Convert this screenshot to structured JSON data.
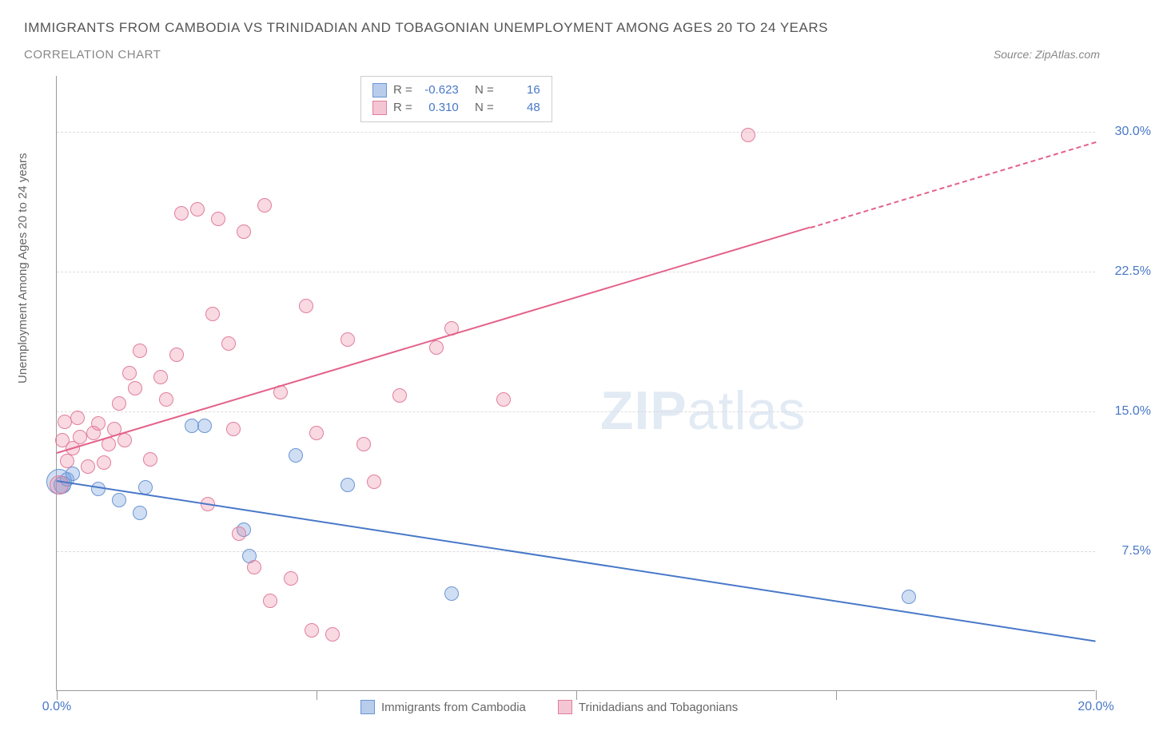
{
  "title": "IMMIGRANTS FROM CAMBODIA VS TRINIDADIAN AND TOBAGONIAN UNEMPLOYMENT AMONG AGES 20 TO 24 YEARS",
  "subtitle": "CORRELATION CHART",
  "source": "Source: ZipAtlas.com",
  "y_axis_label": "Unemployment Among Ages 20 to 24 years",
  "watermark_a": "ZIP",
  "watermark_b": "atlas",
  "chart": {
    "type": "scatter",
    "xlim": [
      0,
      20
    ],
    "ylim": [
      0,
      33
    ],
    "x_ticks": [
      0,
      5,
      10,
      15,
      20
    ],
    "x_tick_labels": [
      "0.0%",
      "",
      "",
      "",
      "20.0%"
    ],
    "y_ticks": [
      7.5,
      15.0,
      22.5,
      30.0
    ],
    "y_tick_labels": [
      "7.5%",
      "15.0%",
      "22.5%",
      "30.0%"
    ],
    "grid_color": "#dddddd",
    "axis_color": "#999999",
    "background_color": "#ffffff",
    "label_fontsize": 15,
    "tick_fontsize": 16,
    "tick_color": "#4878c8"
  },
  "series": [
    {
      "name": "Immigrants from Cambodia",
      "color_fill": "rgba(120,160,220,0.35)",
      "color_stroke": "#6a95d4",
      "swatch_fill": "#b8cdec",
      "swatch_border": "#6a95d4",
      "marker_radius": 9,
      "stats": {
        "R": "-0.623",
        "N": "16"
      },
      "trend": {
        "x1": 0.0,
        "y1": 11.3,
        "x2": 20.0,
        "y2": 2.7,
        "dash_from_x": null,
        "color": "#4878c8"
      },
      "points": [
        {
          "x": 0.05,
          "y": 11.2,
          "r": 16
        },
        {
          "x": 0.1,
          "y": 11.0,
          "r": 11
        },
        {
          "x": 0.2,
          "y": 11.3,
          "r": 9
        },
        {
          "x": 0.3,
          "y": 11.6,
          "r": 9
        },
        {
          "x": 0.8,
          "y": 10.8,
          "r": 9
        },
        {
          "x": 1.2,
          "y": 10.2,
          "r": 9
        },
        {
          "x": 1.6,
          "y": 9.5,
          "r": 9
        },
        {
          "x": 1.7,
          "y": 10.9,
          "r": 9
        },
        {
          "x": 2.6,
          "y": 14.2,
          "r": 9
        },
        {
          "x": 2.85,
          "y": 14.2,
          "r": 9
        },
        {
          "x": 3.6,
          "y": 8.6,
          "r": 9
        },
        {
          "x": 3.7,
          "y": 7.2,
          "r": 9
        },
        {
          "x": 4.6,
          "y": 12.6,
          "r": 9
        },
        {
          "x": 5.6,
          "y": 11.0,
          "r": 9
        },
        {
          "x": 7.6,
          "y": 5.2,
          "r": 9
        },
        {
          "x": 16.4,
          "y": 5.0,
          "r": 9
        }
      ]
    },
    {
      "name": "Trinidadians and Tobagonians",
      "color_fill": "rgba(235,130,160,0.30)",
      "color_stroke": "#e07f9e",
      "swatch_fill": "#f4c6d4",
      "swatch_border": "#e07f9e",
      "marker_radius": 9,
      "stats": {
        "R": "0.310",
        "N": "48"
      },
      "trend": {
        "x1": 0.0,
        "y1": 12.8,
        "x2": 20.0,
        "y2": 29.5,
        "dash_from_x": 14.5,
        "color": "#e46189"
      },
      "points": [
        {
          "x": 0.05,
          "y": 11.0,
          "r": 12
        },
        {
          "x": 0.1,
          "y": 13.4,
          "r": 9
        },
        {
          "x": 0.15,
          "y": 14.4,
          "r": 9
        },
        {
          "x": 0.2,
          "y": 12.3,
          "r": 9
        },
        {
          "x": 0.3,
          "y": 13.0,
          "r": 9
        },
        {
          "x": 0.4,
          "y": 14.6,
          "r": 9
        },
        {
          "x": 0.45,
          "y": 13.6,
          "r": 9
        },
        {
          "x": 0.6,
          "y": 12.0,
          "r": 9
        },
        {
          "x": 0.7,
          "y": 13.8,
          "r": 9
        },
        {
          "x": 0.8,
          "y": 14.3,
          "r": 9
        },
        {
          "x": 0.9,
          "y": 12.2,
          "r": 9
        },
        {
          "x": 1.0,
          "y": 13.2,
          "r": 9
        },
        {
          "x": 1.1,
          "y": 14.0,
          "r": 9
        },
        {
          "x": 1.2,
          "y": 15.4,
          "r": 9
        },
        {
          "x": 1.3,
          "y": 13.4,
          "r": 9
        },
        {
          "x": 1.4,
          "y": 17.0,
          "r": 9
        },
        {
          "x": 1.5,
          "y": 16.2,
          "r": 9
        },
        {
          "x": 1.6,
          "y": 18.2,
          "r": 9
        },
        {
          "x": 1.8,
          "y": 12.4,
          "r": 9
        },
        {
          "x": 2.0,
          "y": 16.8,
          "r": 9
        },
        {
          "x": 2.1,
          "y": 15.6,
          "r": 9
        },
        {
          "x": 2.3,
          "y": 18.0,
          "r": 9
        },
        {
          "x": 2.4,
          "y": 25.6,
          "r": 9
        },
        {
          "x": 2.7,
          "y": 25.8,
          "r": 9
        },
        {
          "x": 2.9,
          "y": 10.0,
          "r": 9
        },
        {
          "x": 3.0,
          "y": 20.2,
          "r": 9
        },
        {
          "x": 3.1,
          "y": 25.3,
          "r": 9
        },
        {
          "x": 3.3,
          "y": 18.6,
          "r": 9
        },
        {
          "x": 3.4,
          "y": 14.0,
          "r": 9
        },
        {
          "x": 3.5,
          "y": 8.4,
          "r": 9
        },
        {
          "x": 3.6,
          "y": 24.6,
          "r": 9
        },
        {
          "x": 3.8,
          "y": 6.6,
          "r": 9
        },
        {
          "x": 4.0,
          "y": 26.0,
          "r": 9
        },
        {
          "x": 4.1,
          "y": 4.8,
          "r": 9
        },
        {
          "x": 4.3,
          "y": 16.0,
          "r": 9
        },
        {
          "x": 4.5,
          "y": 6.0,
          "r": 9
        },
        {
          "x": 4.8,
          "y": 20.6,
          "r": 9
        },
        {
          "x": 4.9,
          "y": 3.2,
          "r": 9
        },
        {
          "x": 5.0,
          "y": 13.8,
          "r": 9
        },
        {
          "x": 5.3,
          "y": 3.0,
          "r": 9
        },
        {
          "x": 5.6,
          "y": 18.8,
          "r": 9
        },
        {
          "x": 5.9,
          "y": 13.2,
          "r": 9
        },
        {
          "x": 6.1,
          "y": 11.2,
          "r": 9
        },
        {
          "x": 6.6,
          "y": 15.8,
          "r": 9
        },
        {
          "x": 7.3,
          "y": 18.4,
          "r": 9
        },
        {
          "x": 7.6,
          "y": 19.4,
          "r": 9
        },
        {
          "x": 8.6,
          "y": 15.6,
          "r": 9
        },
        {
          "x": 13.3,
          "y": 29.8,
          "r": 9
        }
      ]
    }
  ],
  "stats_legend_labels": {
    "R": "R =",
    "N": "N ="
  },
  "bottom_legend": [
    {
      "label": "Immigrants from Cambodia",
      "fill": "#b8cdec",
      "border": "#6a95d4"
    },
    {
      "label": "Trinidadians and Tobagonians",
      "fill": "#f4c6d4",
      "border": "#e07f9e"
    }
  ]
}
